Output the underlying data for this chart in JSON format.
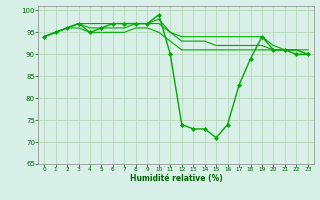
{
  "lines": [
    {
      "x": [
        0,
        1,
        2,
        3,
        4,
        5,
        6,
        7,
        8,
        9,
        10,
        11,
        12,
        13,
        14,
        15,
        16,
        17,
        18,
        19,
        20,
        21,
        22,
        23
      ],
      "y": [
        94,
        95,
        96,
        97,
        95,
        96,
        97,
        97,
        97,
        97,
        99,
        90,
        74,
        73,
        73,
        71,
        74,
        83,
        89,
        94,
        91,
        91,
        90,
        90
      ],
      "color": "#00aa00",
      "marker": "D",
      "markersize": 2.0,
      "linewidth": 1.0
    },
    {
      "x": [
        0,
        1,
        2,
        3,
        4,
        5,
        6,
        7,
        8,
        9,
        10,
        11,
        12,
        13,
        14,
        15,
        16,
        17,
        18,
        19,
        20,
        21,
        22,
        23
      ],
      "y": [
        94,
        95,
        96,
        96,
        95,
        95,
        95,
        95,
        96,
        96,
        95,
        93,
        91,
        91,
        91,
        91,
        91,
        91,
        91,
        91,
        91,
        91,
        91,
        91
      ],
      "color": "#00aa00",
      "marker": null,
      "markersize": 0,
      "linewidth": 0.8
    },
    {
      "x": [
        0,
        1,
        2,
        3,
        4,
        5,
        6,
        7,
        8,
        9,
        10,
        11,
        12,
        13,
        14,
        15,
        16,
        17,
        18,
        19,
        20,
        21,
        22,
        23
      ],
      "y": [
        94,
        95,
        96,
        97,
        96,
        96,
        96,
        96,
        97,
        97,
        97,
        95,
        93,
        93,
        93,
        92,
        92,
        92,
        92,
        92,
        91,
        91,
        91,
        90
      ],
      "color": "#00aa00",
      "marker": null,
      "markersize": 0,
      "linewidth": 0.8
    },
    {
      "x": [
        0,
        1,
        2,
        3,
        4,
        5,
        6,
        7,
        8,
        9,
        10,
        11,
        12,
        13,
        14,
        15,
        16,
        17,
        18,
        19,
        20,
        21,
        22,
        23
      ],
      "y": [
        94,
        95,
        96,
        97,
        97,
        97,
        97,
        97,
        97,
        97,
        98,
        95,
        94,
        94,
        94,
        94,
        94,
        94,
        94,
        94,
        92,
        91,
        91,
        90
      ],
      "color": "#00aa00",
      "marker": null,
      "markersize": 0,
      "linewidth": 0.8
    }
  ],
  "xlabel": "Humidité relative (%)",
  "xlim": [
    -0.5,
    23.5
  ],
  "ylim": [
    65,
    101
  ],
  "yticks": [
    65,
    70,
    75,
    80,
    85,
    90,
    95,
    100
  ],
  "xticks": [
    0,
    1,
    2,
    3,
    4,
    5,
    6,
    7,
    8,
    9,
    10,
    11,
    12,
    13,
    14,
    15,
    16,
    17,
    18,
    19,
    20,
    21,
    22,
    23
  ],
  "grid_color": "#b0d4b0",
  "bg_color": "#d8f0e8",
  "line_color": "#00aa00",
  "tick_color": "#006600",
  "xlabel_color": "#006600"
}
